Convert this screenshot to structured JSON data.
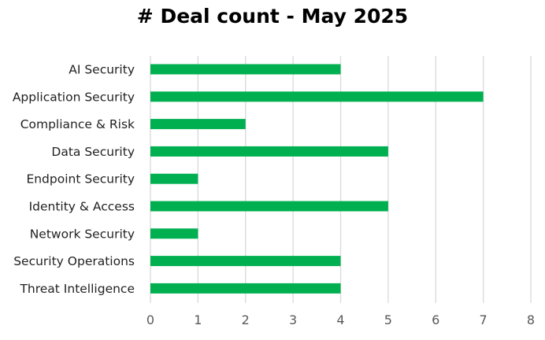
{
  "chart_data": {
    "type": "bar",
    "orientation": "horizontal",
    "title": "# Deal count - May 2025",
    "xlabel": "",
    "ylabel": "",
    "categories": [
      "AI Security",
      "Application Security",
      "Compliance & Risk",
      "Data Security",
      "Endpoint Security",
      "Identity & Access",
      "Network Security",
      "Security Operations",
      "Threat Intelligence"
    ],
    "values": [
      4,
      7,
      2,
      5,
      1,
      5,
      1,
      4,
      4
    ],
    "xlim": [
      0,
      8
    ],
    "xticks": [
      "0",
      "1",
      "2",
      "3",
      "4",
      "5",
      "6",
      "7",
      "8"
    ],
    "grid": "vertical",
    "legend": "none",
    "bar_color": "#00B050",
    "grid_color": "#D9D9D9"
  }
}
